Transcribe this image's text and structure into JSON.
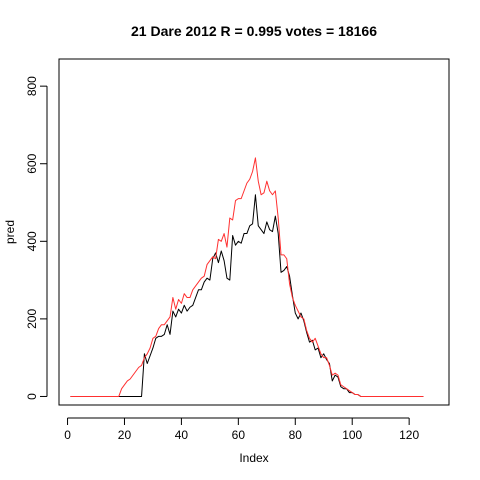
{
  "chart_data": {
    "type": "line",
    "title": "21 Dare 2012 R = 0.995 votes = 18166",
    "xlabel": "Index",
    "ylabel": "pred",
    "xlim": [
      -3,
      134
    ],
    "ylim": [
      -22,
      870
    ],
    "xticks": [
      0,
      20,
      40,
      60,
      80,
      100,
      120
    ],
    "yticks": [
      0,
      200,
      400,
      600,
      800
    ],
    "xtick_labels": [
      "0",
      "20",
      "40",
      "60",
      "80",
      "100",
      "120"
    ],
    "ytick_labels": [
      "0",
      "200",
      "400",
      "600",
      "800"
    ],
    "grid": false,
    "legend": "none",
    "series": [
      {
        "color": "#000000",
        "values": [
          0,
          0,
          0,
          0,
          0,
          0,
          0,
          0,
          0,
          0,
          0,
          0,
          0,
          0,
          0,
          0,
          0,
          0,
          0,
          0,
          0,
          0,
          0,
          0,
          0,
          0,
          110,
          85,
          105,
          125,
          150,
          155,
          155,
          160,
          185,
          160,
          220,
          205,
          225,
          215,
          235,
          220,
          230,
          235,
          255,
          275,
          275,
          295,
          305,
          300,
          355,
          370,
          345,
          375,
          350,
          305,
          300,
          415,
          390,
          400,
          395,
          420,
          420,
          440,
          445,
          520,
          440,
          430,
          420,
          450,
          430,
          425,
          465,
          420,
          320,
          325,
          335,
          310,
          260,
          215,
          200,
          215,
          195,
          165,
          140,
          145,
          120,
          125,
          100,
          110,
          95,
          85,
          40,
          55,
          50,
          25,
          20,
          20,
          10,
          10,
          5,
          5,
          0,
          0,
          0,
          0,
          0,
          0,
          0,
          0,
          0,
          0,
          0,
          0,
          0,
          0,
          0,
          0,
          0,
          0,
          0,
          0,
          0,
          0,
          0
        ]
      },
      {
        "color": "#ff3030",
        "values": [
          0,
          0,
          0,
          0,
          0,
          0,
          0,
          0,
          0,
          0,
          0,
          0,
          0,
          0,
          0,
          0,
          0,
          0,
          20,
          30,
          40,
          45,
          55,
          65,
          75,
          80,
          100,
          110,
          125,
          150,
          155,
          175,
          185,
          185,
          195,
          205,
          255,
          225,
          250,
          240,
          265,
          255,
          255,
          275,
          285,
          295,
          305,
          310,
          340,
          350,
          360,
          355,
          405,
          400,
          420,
          385,
          460,
          455,
          505,
          510,
          510,
          530,
          550,
          560,
          580,
          615,
          555,
          520,
          525,
          555,
          530,
          520,
          530,
          460,
          365,
          365,
          355,
          290,
          255,
          235,
          220,
          205,
          200,
          170,
          150,
          140,
          150,
          130,
          110,
          100,
          100,
          80,
          55,
          60,
          55,
          30,
          25,
          20,
          15,
          10,
          5,
          5,
          0,
          0,
          0,
          0,
          0,
          0,
          0,
          0,
          0,
          0,
          0,
          0,
          0,
          0,
          0,
          0,
          0,
          0,
          0,
          0,
          0,
          0,
          0
        ]
      }
    ]
  }
}
